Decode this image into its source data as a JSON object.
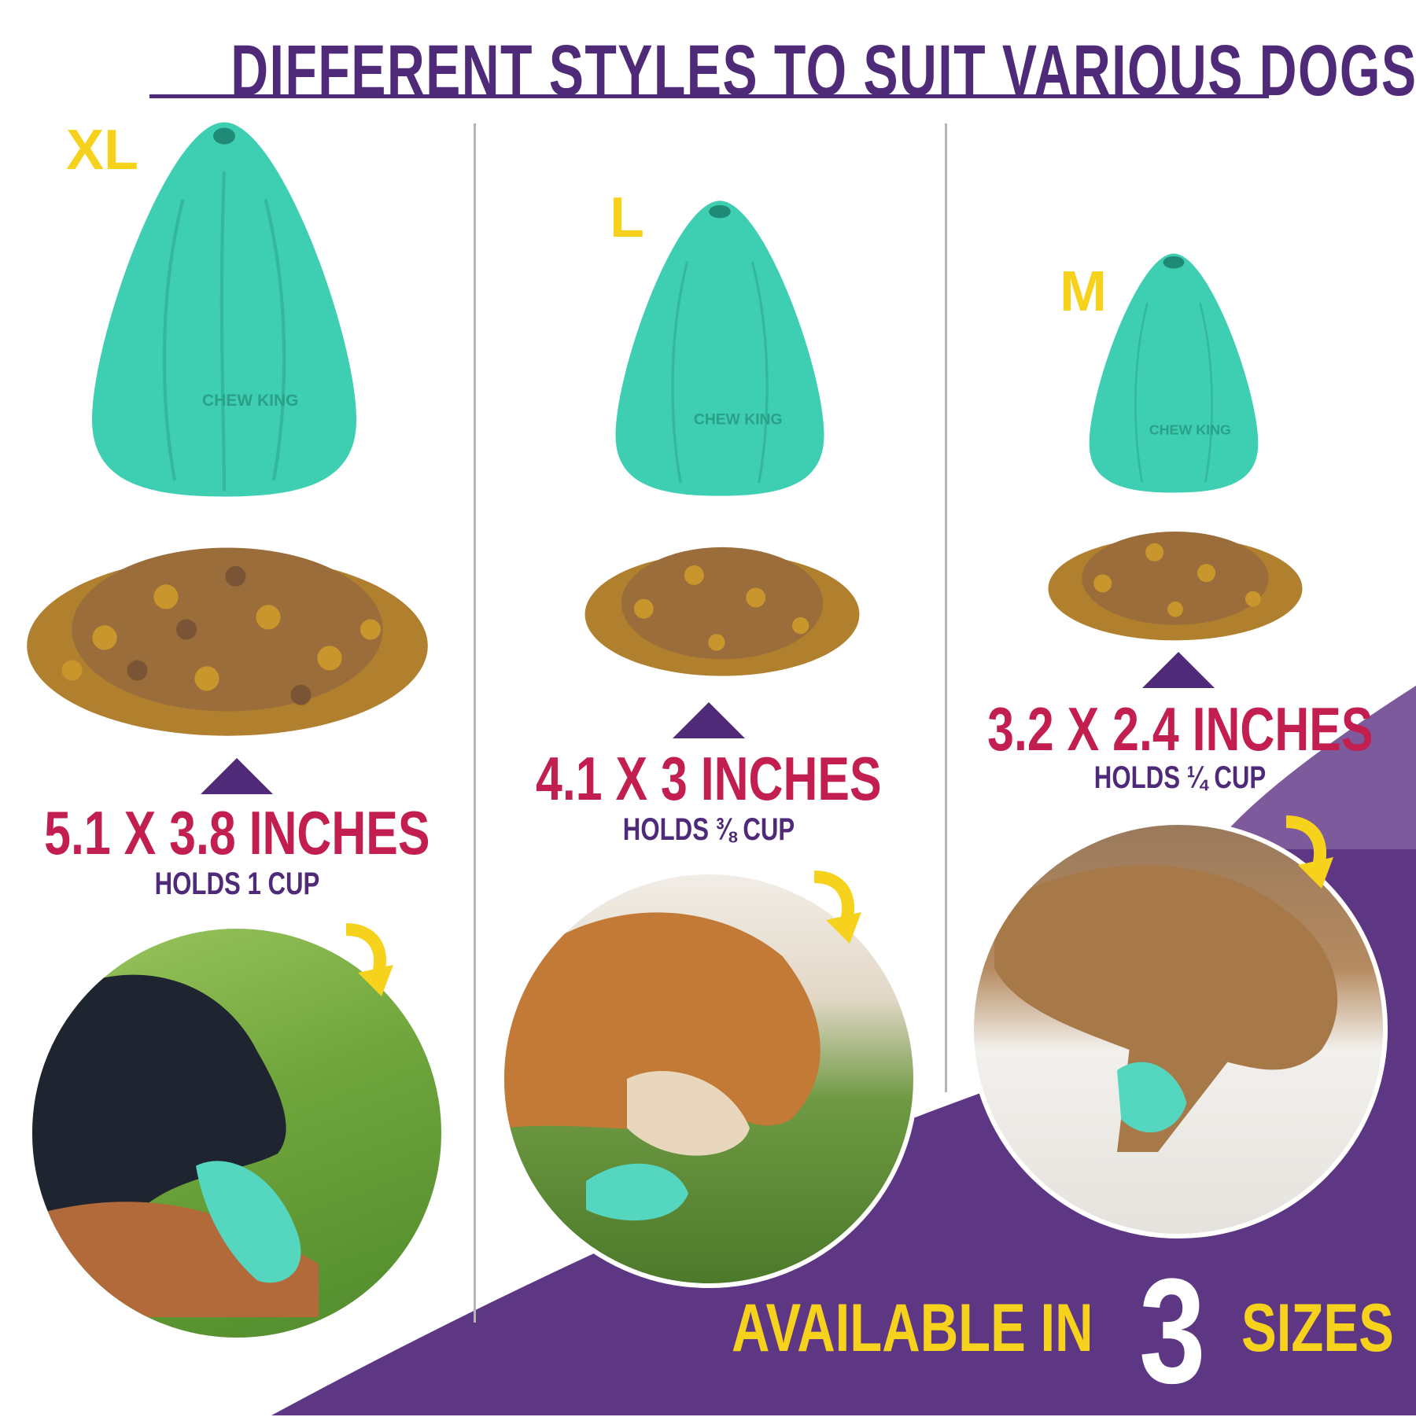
{
  "header": {
    "title": "DIFFERENT STYLES TO SUIT VARIOUS DOGS"
  },
  "colors": {
    "title_purple": "#4e2a78",
    "dimension_red": "#c21e4f",
    "label_yellow": "#f6d21c",
    "toy_teal": "#3ecfb2",
    "banner_purple": "#5e3784",
    "banner_purple_light": "#7d5a9c"
  },
  "sizes": [
    {
      "label": "XL",
      "dimensions": "5.1 X 3.8 INCHES",
      "holds": "HOLDS 1 CUP",
      "toy_logo": "CHEW KING"
    },
    {
      "label": "L",
      "dimensions": "4.1 X 3 INCHES",
      "holds": "HOLDS ⅜ CUP",
      "toy_logo": "CHEW KING"
    },
    {
      "label": "M",
      "dimensions": "3.2 X 2.4 INCHES",
      "holds": "HOLDS ¼ CUP",
      "toy_logo": "CHEW KING"
    }
  ],
  "banner": {
    "prefix": "AVAILABLE IN",
    "number": "3",
    "suffix": "SIZES"
  },
  "icons": [
    "pointer-triangle-icon",
    "curved-arrow-icon"
  ]
}
